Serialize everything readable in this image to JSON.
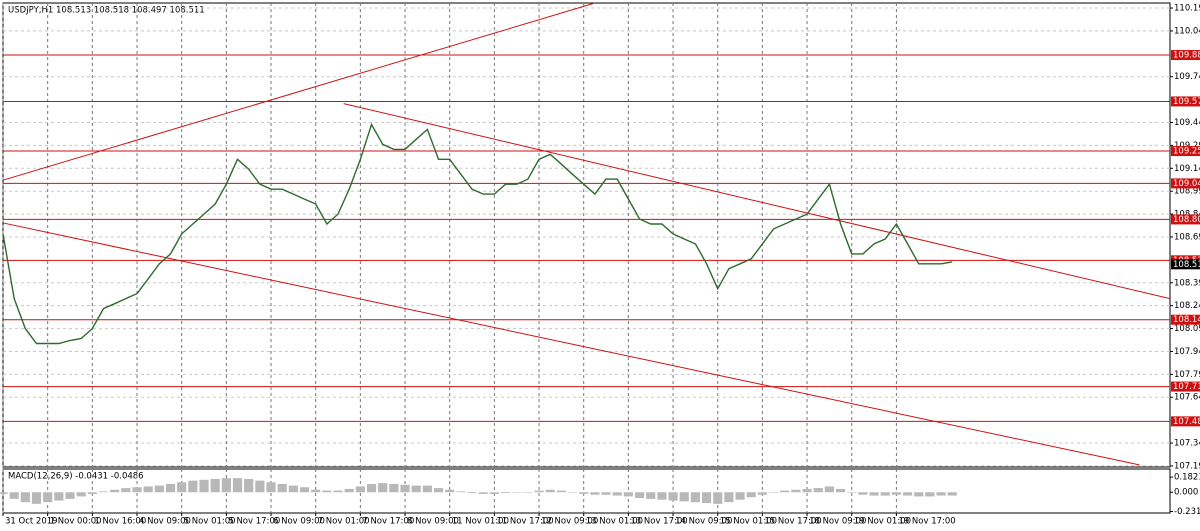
{
  "chart_data": {
    "type": "line",
    "title": "USDJPY,H1  108.513 108.518 108.497 108.511",
    "color": "#2e6b2e",
    "grid": true,
    "xlim": [
      0,
      418
    ],
    "ylim": [
      107.183,
      110.223
    ],
    "xticks": [
      {
        "value": 0,
        "label": "31 Oct 2019"
      },
      {
        "value": 16,
        "label": "1 Nov 00:00"
      },
      {
        "value": 32,
        "label": "1 Nov 16:00"
      },
      {
        "value": 48,
        "label": "4 Nov 09:00"
      },
      {
        "value": 64,
        "label": "5 Nov 01:00"
      },
      {
        "value": 80,
        "label": "5 Nov 17:00"
      },
      {
        "value": 96,
        "label": "6 Nov 09:00"
      },
      {
        "value": 112,
        "label": "7 Nov 01:00"
      },
      {
        "value": 128,
        "label": "7 Nov 17:00"
      },
      {
        "value": 144,
        "label": "8 Nov 09:00"
      },
      {
        "value": 160,
        "label": "11 Nov 01:00"
      },
      {
        "value": 176,
        "label": "11 Nov 17:00"
      },
      {
        "value": 192,
        "label": "12 Nov 09:00"
      },
      {
        "value": 208,
        "label": "13 Nov 01:00"
      },
      {
        "value": 224,
        "label": "13 Nov 17:00"
      },
      {
        "value": 240,
        "label": "14 Nov 09:00"
      },
      {
        "value": 256,
        "label": "15 Nov 01:00"
      },
      {
        "value": 272,
        "label": "15 Nov 17:00"
      },
      {
        "value": 288,
        "label": "18 Nov 09:00"
      },
      {
        "value": 304,
        "label": "19 Nov 01:00"
      },
      {
        "value": 320,
        "label": "19 Nov 17:00"
      }
    ],
    "yticks": [
      {
        "value": 110.19,
        "label": "110.190"
      },
      {
        "value": 110.04,
        "label": "110.040"
      },
      {
        "value": 109.74,
        "label": "109.740"
      },
      {
        "value": 109.44,
        "label": "109.440"
      },
      {
        "value": 109.29,
        "label": "109.290"
      },
      {
        "value": 109.14,
        "label": "109.140"
      },
      {
        "value": 108.99,
        "label": "108.990"
      },
      {
        "value": 108.84,
        "label": "108.840"
      },
      {
        "value": 108.69,
        "label": "108.690"
      },
      {
        "value": 108.39,
        "label": "108.390"
      },
      {
        "value": 108.24,
        "label": "108.240"
      },
      {
        "value": 108.09,
        "label": "108.090"
      },
      {
        "value": 107.94,
        "label": "107.940"
      },
      {
        "value": 107.79,
        "label": "107.790"
      },
      {
        "value": 107.64,
        "label": "107.640"
      },
      {
        "value": 107.34,
        "label": "107.340"
      },
      {
        "value": 107.19,
        "label": "107.190"
      }
    ],
    "x": [
      0,
      4,
      8,
      12,
      16,
      20,
      24,
      28,
      32,
      36,
      40,
      44,
      48,
      52,
      56,
      60,
      64,
      68,
      72,
      76,
      80,
      84,
      88,
      92,
      96,
      100,
      104,
      108,
      112,
      116,
      120,
      124,
      128,
      132,
      136,
      140,
      144,
      148,
      152,
      156,
      160,
      164,
      168,
      172,
      176,
      180,
      184,
      188,
      192,
      196,
      200,
      204,
      208,
      212,
      216,
      220,
      224,
      228,
      232,
      236,
      240,
      244,
      248,
      252,
      256,
      260,
      264,
      268,
      272,
      276,
      280,
      284,
      288,
      292,
      296,
      300,
      304,
      308,
      312,
      316,
      320,
      324,
      328,
      332,
      336,
      340
    ],
    "values": [
      108.71,
      108.286,
      108.09,
      107.992,
      107.992,
      107.992,
      108.012,
      108.025,
      108.09,
      108.221,
      108.253,
      108.286,
      108.319,
      108.416,
      108.514,
      108.579,
      108.71,
      108.775,
      108.84,
      108.906,
      109.036,
      109.199,
      109.134,
      109.036,
      109.003,
      109.003,
      108.971,
      108.938,
      108.906,
      108.775,
      108.84,
      109.003,
      109.199,
      109.427,
      109.297,
      109.264,
      109.264,
      109.33,
      109.395,
      109.199,
      109.199,
      109.101,
      109.003,
      108.971,
      108.971,
      109.036,
      109.036,
      109.069,
      109.199,
      109.232,
      109.167,
      109.101,
      109.036,
      108.971,
      109.069,
      109.069,
      108.938,
      108.808,
      108.775,
      108.775,
      108.71,
      108.677,
      108.645,
      108.514,
      108.351,
      108.482,
      108.514,
      108.547,
      108.645,
      108.743,
      108.775,
      108.808,
      108.84,
      108.938,
      109.036,
      108.775,
      108.579,
      108.579,
      108.645,
      108.677,
      108.775,
      108.645,
      108.514,
      108.514,
      108.514,
      108.527
    ],
    "level_color": "#d01010",
    "levels": [
      109.882,
      109.578,
      109.253,
      109.041,
      108.805,
      108.537,
      108.148,
      {
        "value": 107.71,
        "label": "107.710"
      },
      107.482
    ],
    "current_price": 108.511,
    "trendlines": [
      {
        "x": [
          0,
          212
        ],
        "values": [
          109.062,
          110.223
        ]
      },
      {
        "x": [
          122,
          418
        ],
        "values": [
          109.564,
          108.286
        ]
      },
      {
        "x": [
          0,
          407
        ],
        "values": [
          108.782,
          107.197
        ]
      }
    ],
    "macd": {
      "label": "MACD(12,26,9) -0.0431 -0.0486",
      "color": "#b8b8b8",
      "ylim": [
        -0.25,
        0.28
      ],
      "yticks": [
        0.1821,
        {
          "value": 0,
          "label": "0.000"
        },
        -0.2319
      ],
      "values": [
        -0.02,
        -0.08,
        -0.12,
        -0.14,
        -0.12,
        -0.1,
        -0.08,
        -0.05,
        -0.02,
        0.01,
        0.03,
        0.05,
        0.06,
        0.07,
        0.08,
        0.1,
        0.12,
        0.14,
        0.15,
        0.16,
        0.17,
        0.17,
        0.16,
        0.14,
        0.12,
        0.1,
        0.08,
        0.06,
        0.03,
        0.02,
        0.02,
        0.04,
        0.07,
        0.1,
        0.11,
        0.1,
        0.09,
        0.08,
        0.08,
        0.05,
        0.03,
        0.01,
        -0.01,
        -0.02,
        -0.02,
        -0.01,
        0.0,
        0.0,
        0.02,
        0.03,
        0.02,
        0.0,
        -0.02,
        -0.03,
        -0.03,
        -0.04,
        -0.05,
        -0.07,
        -0.08,
        -0.09,
        -0.1,
        -0.11,
        -0.12,
        -0.13,
        -0.14,
        -0.12,
        -0.09,
        -0.06,
        -0.03,
        0.0,
        0.02,
        0.03,
        0.04,
        0.05,
        0.07,
        0.04,
        0.0,
        -0.03,
        -0.04,
        -0.04,
        -0.03,
        -0.04,
        -0.05,
        -0.05,
        -0.04,
        -0.04
      ]
    }
  }
}
